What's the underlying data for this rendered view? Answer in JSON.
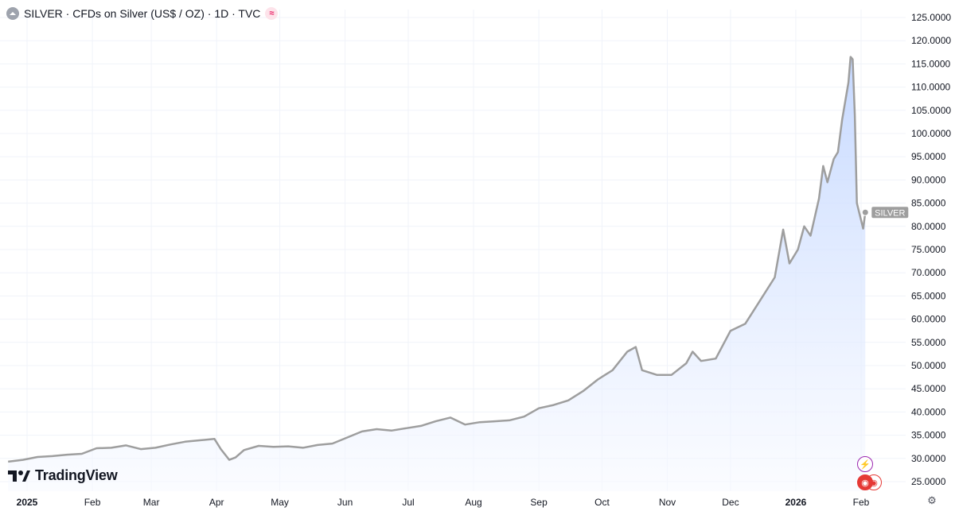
{
  "header": {
    "title": "SILVER · CFDs on Silver (US$ / OZ) · 1D · TVC",
    "icon": "silver-icon",
    "badge": "≈"
  },
  "brand": {
    "name": "TradingView",
    "icon": "tradingview-logo-icon"
  },
  "colors": {
    "line": "#9e9e9e",
    "fill_top": "#bcd2ff",
    "fill_bottom": "#f8faff",
    "grid": "#f0f3fa",
    "axis_text": "#131722",
    "label_bg": "#9e9e9e",
    "flash_accent": "#9c27b0",
    "flag_accent": "#e53935"
  },
  "chart_data": {
    "type": "area",
    "series": [
      {
        "name": "SILVER",
        "points": [
          [
            "2024-12-23",
            29.3
          ],
          [
            "2024-12-30",
            29.7
          ],
          [
            "2025-01-06",
            30.3
          ],
          [
            "2025-01-13",
            30.5
          ],
          [
            "2025-01-20",
            30.8
          ],
          [
            "2025-01-27",
            31.0
          ],
          [
            "2025-02-03",
            32.2
          ],
          [
            "2025-02-10",
            32.3
          ],
          [
            "2025-02-17",
            32.8
          ],
          [
            "2025-02-24",
            32.0
          ],
          [
            "2025-03-03",
            32.3
          ],
          [
            "2025-03-10",
            33.0
          ],
          [
            "2025-03-17",
            33.6
          ],
          [
            "2025-03-24",
            33.9
          ],
          [
            "2025-03-31",
            34.2
          ],
          [
            "2025-04-03",
            32.0
          ],
          [
            "2025-04-07",
            29.7
          ],
          [
            "2025-04-10",
            30.2
          ],
          [
            "2025-04-14",
            31.8
          ],
          [
            "2025-04-21",
            32.7
          ],
          [
            "2025-04-28",
            32.5
          ],
          [
            "2025-05-05",
            32.6
          ],
          [
            "2025-05-12",
            32.3
          ],
          [
            "2025-05-19",
            32.9
          ],
          [
            "2025-05-26",
            33.2
          ],
          [
            "2025-06-02",
            34.5
          ],
          [
            "2025-06-09",
            35.8
          ],
          [
            "2025-06-16",
            36.3
          ],
          [
            "2025-06-23",
            36.0
          ],
          [
            "2025-06-30",
            36.5
          ],
          [
            "2025-07-07",
            37.0
          ],
          [
            "2025-07-14",
            38.0
          ],
          [
            "2025-07-21",
            38.8
          ],
          [
            "2025-07-28",
            37.3
          ],
          [
            "2025-08-04",
            37.8
          ],
          [
            "2025-08-11",
            38.0
          ],
          [
            "2025-08-18",
            38.2
          ],
          [
            "2025-08-25",
            39.0
          ],
          [
            "2025-09-01",
            40.8
          ],
          [
            "2025-09-08",
            41.5
          ],
          [
            "2025-09-15",
            42.5
          ],
          [
            "2025-09-22",
            44.5
          ],
          [
            "2025-09-29",
            47.0
          ],
          [
            "2025-10-06",
            49.0
          ],
          [
            "2025-10-13",
            53.0
          ],
          [
            "2025-10-17",
            54.0
          ],
          [
            "2025-10-20",
            49.0
          ],
          [
            "2025-10-27",
            48.0
          ],
          [
            "2025-11-03",
            48.0
          ],
          [
            "2025-11-10",
            50.5
          ],
          [
            "2025-11-13",
            53.0
          ],
          [
            "2025-11-17",
            51.0
          ],
          [
            "2025-11-24",
            51.5
          ],
          [
            "2025-12-01",
            57.5
          ],
          [
            "2025-12-08",
            59.0
          ],
          [
            "2025-12-15",
            64.0
          ],
          [
            "2025-12-22",
            69.0
          ],
          [
            "2025-12-26",
            79.3
          ],
          [
            "2025-12-29",
            72.0
          ],
          [
            "2026-01-02",
            75.0
          ],
          [
            "2026-01-05",
            80.0
          ],
          [
            "2026-01-08",
            78.0
          ],
          [
            "2026-01-12",
            86.0
          ],
          [
            "2026-01-14",
            93.0
          ],
          [
            "2026-01-16",
            89.5
          ],
          [
            "2026-01-19",
            94.5
          ],
          [
            "2026-01-21",
            96.0
          ],
          [
            "2026-01-23",
            103.0
          ],
          [
            "2026-01-26",
            111.0
          ],
          [
            "2026-01-27",
            116.5
          ],
          [
            "2026-01-28",
            116.0
          ],
          [
            "2026-01-29",
            104.0
          ],
          [
            "2026-01-30",
            85.0
          ],
          [
            "2026-02-02",
            79.5
          ],
          [
            "2026-02-03",
            83.0
          ]
        ]
      }
    ],
    "ylim": [
      25,
      125
    ],
    "y_ticks": [
      "125.0000",
      "120.0000",
      "115.0000",
      "110.0000",
      "105.0000",
      "100.0000",
      "95.0000",
      "90.0000",
      "85.0000",
      "80.0000",
      "75.0000",
      "70.0000",
      "65.0000",
      "60.0000",
      "55.0000",
      "50.0000",
      "45.0000",
      "40.0000",
      "35.0000",
      "30.0000",
      "25.0000"
    ],
    "x_ticks": [
      {
        "date": "2025-01-01",
        "label": "2025",
        "bold": true
      },
      {
        "date": "2025-02-01",
        "label": "Feb"
      },
      {
        "date": "2025-03-01",
        "label": "Mar"
      },
      {
        "date": "2025-04-01",
        "label": "Apr"
      },
      {
        "date": "2025-05-01",
        "label": "May"
      },
      {
        "date": "2025-06-01",
        "label": "Jun"
      },
      {
        "date": "2025-07-01",
        "label": "Jul"
      },
      {
        "date": "2025-08-01",
        "label": "Aug"
      },
      {
        "date": "2025-09-01",
        "label": "Sep"
      },
      {
        "date": "2025-10-01",
        "label": "Oct"
      },
      {
        "date": "2025-11-01",
        "label": "Nov"
      },
      {
        "date": "2025-12-01",
        "label": "Dec"
      },
      {
        "date": "2026-01-01",
        "label": "2026",
        "bold": true
      },
      {
        "date": "2026-02-01",
        "label": "Feb"
      }
    ],
    "last_value_label": "SILVER",
    "grid": true,
    "price_scale": "right"
  }
}
